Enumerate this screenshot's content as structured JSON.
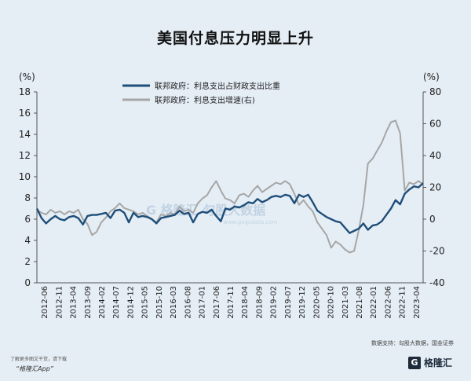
{
  "page_title": "美国付息压力明显上升",
  "source_note": "数据支持：勾股大数据，国金证券",
  "footer": {
    "note": "了解更多图文干货，请下载",
    "app": "“格隆汇App”",
    "brand": "格隆汇",
    "brand_logo": "G"
  },
  "watermark": {
    "text": "G 格隆汇 勾股大数据",
    "url": "www.gogudata.com"
  },
  "chart_data": {
    "type": "line",
    "left_axis": {
      "unit": "(%)",
      "range": [
        0,
        18
      ],
      "ticks": [
        "0",
        "2",
        "4",
        "6",
        "8",
        "10",
        "12",
        "14",
        "16",
        "18"
      ]
    },
    "right_axis": {
      "unit": "(%)",
      "range": [
        -40,
        80
      ],
      "ticks": [
        "-40",
        "-20",
        "0",
        "20",
        "40",
        "60",
        "80"
      ]
    },
    "x_ticks": [
      "2012-06",
      "2012-11",
      "2013-04",
      "2013-09",
      "2014-02",
      "2014-07",
      "2014-12",
      "2015-05",
      "2015-10",
      "2016-03",
      "2016-08",
      "2017-01",
      "2017-06",
      "2017-11",
      "2018-04",
      "2018-09",
      "2019-02",
      "2019-07",
      "2019-12",
      "2020-05",
      "2020-10",
      "2021-03",
      "2021-08",
      "2022-01",
      "2022-06",
      "2022-11",
      "2023-04"
    ],
    "series": [
      {
        "name": "联邦政府：利息支出占财政支出比重",
        "axis": "left",
        "color": "#1f4e79",
        "values": [
          7.0,
          6.1,
          5.6,
          6.0,
          6.3,
          6.0,
          5.9,
          6.2,
          6.3,
          6.1,
          5.5,
          6.3,
          6.4,
          6.4,
          6.5,
          6.6,
          6.1,
          6.8,
          6.9,
          6.6,
          5.7,
          6.6,
          6.2,
          6.3,
          6.2,
          6.0,
          5.6,
          6.1,
          6.2,
          6.3,
          6.4,
          6.8,
          6.5,
          6.6,
          5.7,
          6.5,
          6.7,
          6.6,
          6.9,
          6.3,
          5.8,
          7.0,
          6.9,
          7.2,
          7.1,
          7.3,
          7.6,
          7.5,
          7.9,
          7.6,
          7.8,
          8.1,
          8.2,
          8.1,
          8.3,
          8.2,
          7.5,
          8.3,
          8.1,
          8.3,
          7.6,
          6.8,
          6.5,
          6.2,
          6.0,
          5.8,
          5.7,
          5.2,
          4.7,
          4.9,
          5.1,
          5.6,
          5.0,
          5.4,
          5.5,
          5.8,
          6.4,
          7.0,
          7.8,
          7.4,
          8.4,
          8.8,
          9.1,
          9.0,
          9.4
        ]
      },
      {
        "name": "联邦政府：利息支出增速(右)",
        "axis": "right",
        "color": "#a6a6a6",
        "values": [
          6,
          4,
          3,
          6,
          4,
          5,
          3,
          5,
          4,
          6,
          0,
          -3,
          -10,
          -8,
          -2,
          1,
          5,
          7,
          10,
          7,
          6,
          5,
          3,
          4,
          2,
          0,
          -2,
          3,
          2,
          4,
          3,
          8,
          5,
          6,
          4,
          10,
          13,
          15,
          20,
          24,
          18,
          13,
          12,
          10,
          15,
          16,
          14,
          18,
          21,
          17,
          19,
          21,
          23,
          22,
          24,
          22,
          16,
          9,
          12,
          8,
          5,
          -2,
          -6,
          -10,
          -18,
          -14,
          -16,
          -19,
          -21,
          -20,
          -7,
          9,
          35,
          38,
          43,
          48,
          55,
          61,
          62,
          54,
          18,
          23,
          22,
          24,
          22
        ]
      }
    ]
  }
}
